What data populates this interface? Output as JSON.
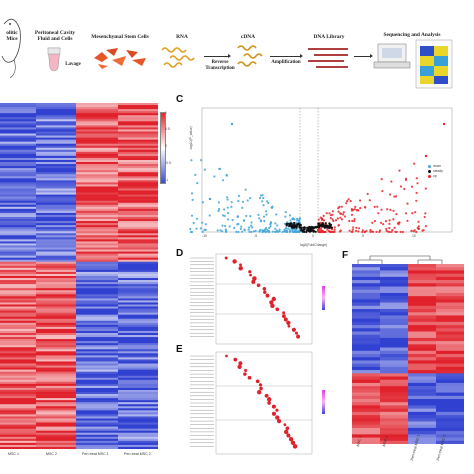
{
  "workflow": {
    "steps": [
      {
        "label": "olitic Mice"
      },
      {
        "label": "Peritoneal Cavity Fluid and Cells"
      },
      {
        "label": "Mesenchymal Stem Cells"
      },
      {
        "label": "RNA"
      },
      {
        "label": "cDNA"
      },
      {
        "label": "DNA Library"
      },
      {
        "label": "Sequencing and Analysis"
      }
    ],
    "sublabels": {
      "lavage": "Lavage",
      "reverse": "Reverse Transcription",
      "amplification": "Amplification"
    }
  },
  "panels": {
    "c": "C",
    "d": "D",
    "e": "E",
    "f": "F"
  },
  "panel_b": {
    "colorbar_ticks": [
      "1",
      "0.5",
      "0",
      "-0.5",
      "-1"
    ],
    "columns": [
      "MSC 1",
      "MSC 2",
      "Peri-treat MSC 1",
      "Peri-treat MSC 2"
    ]
  },
  "panel_c": {
    "xlabel": "log2(FoldChange)",
    "ylabel": "-log10(P_value)",
    "xticks": [
      "-10",
      "-5",
      "0",
      "5",
      "10"
    ],
    "legend": [
      "down",
      "steady",
      "up"
    ]
  },
  "panel_f": {
    "columns": [
      "MSC 1",
      "MSC 2",
      "Peri-treat MSC 1",
      "Peri-treat MSC 2"
    ]
  },
  "colors": {
    "red": "#e8242c",
    "blue": "#3a4bd6",
    "light_blue": "#42a5d8",
    "black": "#111111",
    "magenta": "#e040e0"
  }
}
